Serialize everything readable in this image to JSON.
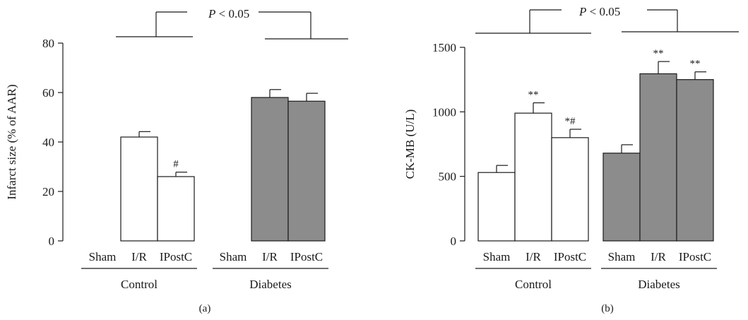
{
  "colors": {
    "control_fill": "#ffffff",
    "diabetes_fill": "#8c8c8c",
    "stroke": "#1a1a1a"
  },
  "chart_data": [
    {
      "type": "bar",
      "panel_label": "(a)",
      "ylabel": "Infarct size (% of AAR)",
      "ylim": [
        0,
        80
      ],
      "yticks": [
        0,
        20,
        40,
        60,
        80
      ],
      "grid": false,
      "groups": [
        {
          "name": "Control",
          "categories": [
            "Sham",
            "I/R",
            "IPostC"
          ],
          "values": [
            0,
            42,
            26
          ],
          "errors": [
            0,
            2.2,
            1.8
          ],
          "marks": [
            "",
            "",
            "#"
          ]
        },
        {
          "name": "Diabetes",
          "categories": [
            "Sham",
            "I/R",
            "IPostC"
          ],
          "values": [
            0,
            58,
            56.5
          ],
          "errors": [
            0,
            3.2,
            3.2
          ],
          "marks": [
            "",
            "",
            ""
          ]
        }
      ],
      "annotation": {
        "prefix": "P",
        "text": " < 0.05"
      }
    },
    {
      "type": "bar",
      "panel_label": "(b)",
      "ylabel": "CK-MB (U/L)",
      "ylim": [
        0,
        1500
      ],
      "yticks": [
        0,
        500,
        1000,
        1500
      ],
      "grid": false,
      "groups": [
        {
          "name": "Control",
          "categories": [
            "Sham",
            "I/R",
            "IPostC"
          ],
          "values": [
            530,
            990,
            800
          ],
          "errors": [
            55,
            80,
            65
          ],
          "marks": [
            "",
            "**",
            "*#"
          ]
        },
        {
          "name": "Diabetes",
          "categories": [
            "Sham",
            "I/R",
            "IPostC"
          ],
          "values": [
            680,
            1295,
            1250
          ],
          "errors": [
            65,
            95,
            60
          ],
          "marks": [
            "",
            "**",
            "**"
          ]
        }
      ],
      "annotation": {
        "prefix": "P",
        "text": " < 0.05"
      }
    }
  ]
}
